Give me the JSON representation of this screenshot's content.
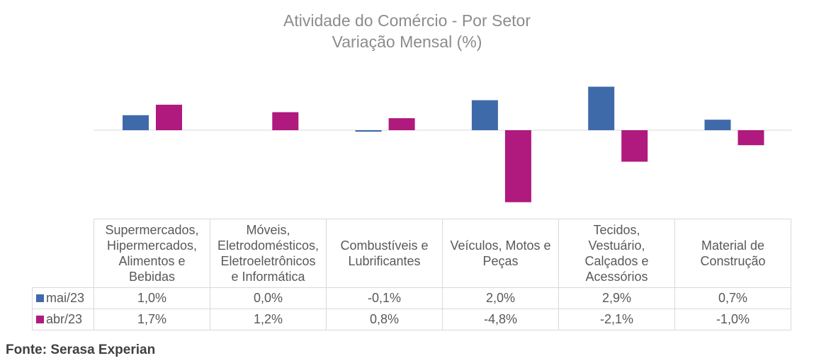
{
  "chart_data": {
    "type": "bar",
    "title": "Atividade do Comércio - Por Setor",
    "subtitle": "Variação Mensal (%)",
    "categories": [
      [
        "Supermercados,",
        "Hipermercados,",
        "Alimentos e",
        "Bebidas"
      ],
      [
        "Móveis,",
        "Eletrodomésticos,",
        "Eletroeletrônicos",
        "e Informática"
      ],
      [
        "Combustíveis e",
        "Lubrificantes"
      ],
      [
        "Veículos, Motos e",
        "Peças"
      ],
      [
        "Tecidos,",
        "Vestuário,",
        "Calçados e",
        "Acessórios"
      ],
      [
        "Material de",
        "Construção"
      ]
    ],
    "series": [
      {
        "name": "mai/23",
        "color": "#3f6aaa",
        "values": [
          1.0,
          0.0,
          -0.1,
          2.0,
          2.9,
          0.7
        ],
        "labels": [
          "1,0%",
          "0,0%",
          "-0,1%",
          "2,0%",
          "2,9%",
          "0,7%"
        ]
      },
      {
        "name": "abr/23",
        "color": "#b0197e",
        "values": [
          1.7,
          1.2,
          0.8,
          -4.8,
          -2.1,
          -1.0
        ],
        "labels": [
          "1,7%",
          "1,2%",
          "0,8%",
          "-4,8%",
          "-2,1%",
          "-1,0%"
        ]
      }
    ],
    "axis_visible": false,
    "grid": false,
    "legend": "data table"
  },
  "source": "Fonte: Serasa Experian"
}
